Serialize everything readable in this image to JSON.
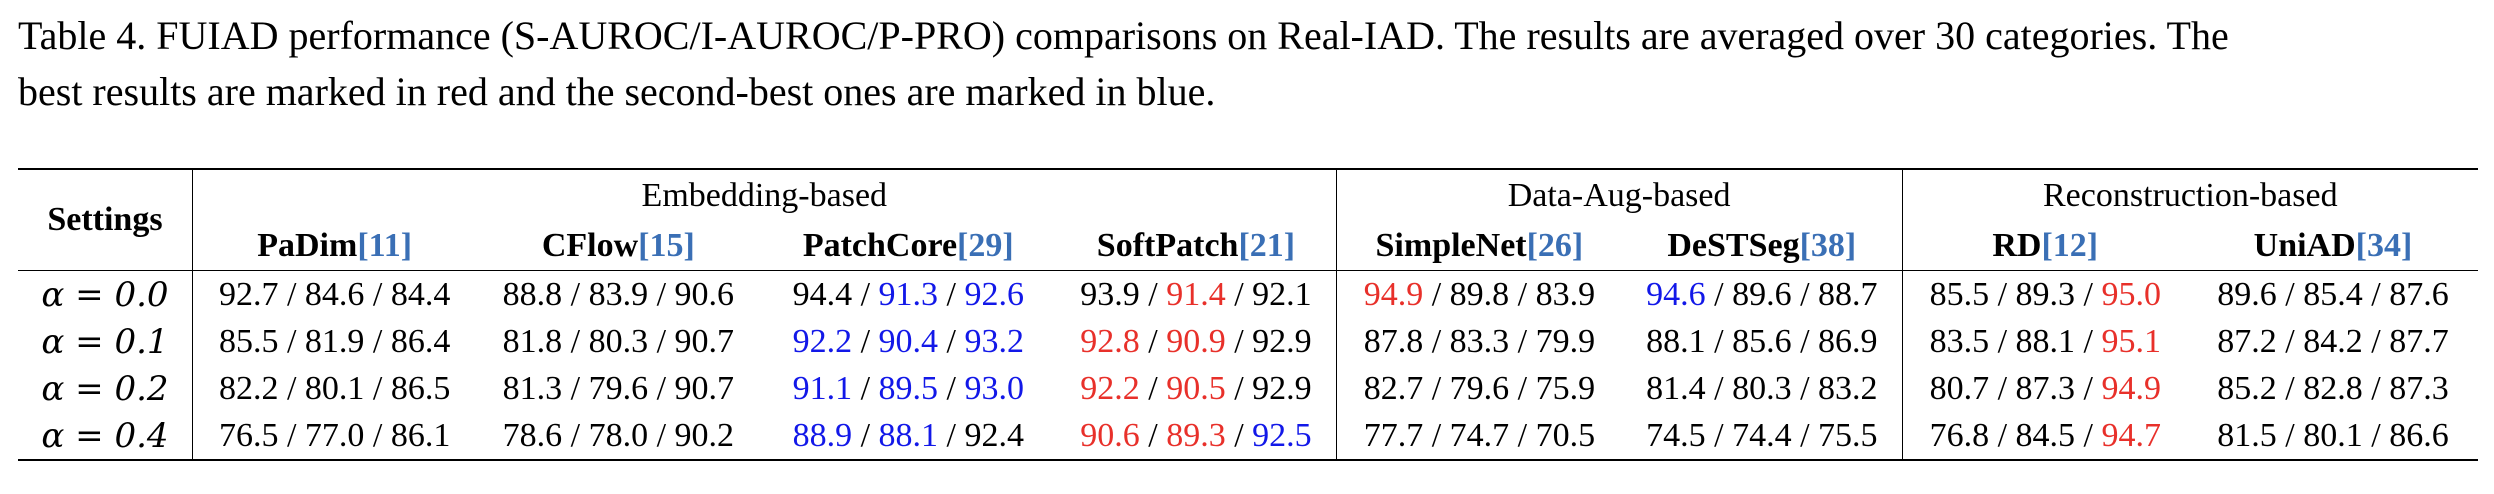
{
  "caption": {
    "line1": "Table 4. FUIAD performance (S-AUROC/I-AUROC/P-PRO) comparisons on Real-IAD. The results are averaged over 30 categories. The",
    "line2": "best results are marked in red and the second-best ones are marked in blue."
  },
  "table": {
    "settings_label": "Settings",
    "groups": [
      "Embedding-based",
      "Data-Aug-based",
      "Reconstruction-based"
    ],
    "methods": [
      {
        "name": "PaDim",
        "ref": "[11]"
      },
      {
        "name": "CFlow",
        "ref": "[15]"
      },
      {
        "name": "PatchCore",
        "ref": "[29]"
      },
      {
        "name": "SoftPatch",
        "ref": "[21]"
      },
      {
        "name": "SimpleNet",
        "ref": "[26]"
      },
      {
        "name": "DeSTSeg",
        "ref": "[38]"
      },
      {
        "name": "RD",
        "ref": "[12]"
      },
      {
        "name": "UniAD",
        "ref": "[34]"
      }
    ],
    "separator": " / ",
    "colors": {
      "best": "#e8302a",
      "second": "#1218e8",
      "citation": "#3a6fb5"
    },
    "rows": [
      {
        "setting": "α = 0.0",
        "cells": [
          [
            {
              "v": "92.7"
            },
            {
              "v": "84.6"
            },
            {
              "v": "84.4"
            }
          ],
          [
            {
              "v": "88.8"
            },
            {
              "v": "83.9"
            },
            {
              "v": "90.6"
            }
          ],
          [
            {
              "v": "94.4"
            },
            {
              "v": "91.3",
              "c": "blue"
            },
            {
              "v": "92.6",
              "c": "blue"
            }
          ],
          [
            {
              "v": "93.9"
            },
            {
              "v": "91.4",
              "c": "red"
            },
            {
              "v": "92.1"
            }
          ],
          [
            {
              "v": "94.9",
              "c": "red"
            },
            {
              "v": "89.8"
            },
            {
              "v": "83.9"
            }
          ],
          [
            {
              "v": "94.6",
              "c": "blue"
            },
            {
              "v": "89.6"
            },
            {
              "v": "88.7"
            }
          ],
          [
            {
              "v": "85.5"
            },
            {
              "v": "89.3"
            },
            {
              "v": "95.0",
              "c": "red"
            }
          ],
          [
            {
              "v": "89.6"
            },
            {
              "v": "85.4"
            },
            {
              "v": "87.6"
            }
          ]
        ]
      },
      {
        "setting": "α = 0.1",
        "cells": [
          [
            {
              "v": "85.5"
            },
            {
              "v": "81.9"
            },
            {
              "v": "86.4"
            }
          ],
          [
            {
              "v": "81.8"
            },
            {
              "v": "80.3"
            },
            {
              "v": "90.7"
            }
          ],
          [
            {
              "v": "92.2",
              "c": "blue"
            },
            {
              "v": "90.4",
              "c": "blue"
            },
            {
              "v": "93.2",
              "c": "blue"
            }
          ],
          [
            {
              "v": "92.8",
              "c": "red"
            },
            {
              "v": "90.9",
              "c": "red"
            },
            {
              "v": "92.9"
            }
          ],
          [
            {
              "v": "87.8"
            },
            {
              "v": "83.3"
            },
            {
              "v": "79.9"
            }
          ],
          [
            {
              "v": "88.1"
            },
            {
              "v": "85.6"
            },
            {
              "v": "86.9"
            }
          ],
          [
            {
              "v": "83.5"
            },
            {
              "v": "88.1"
            },
            {
              "v": "95.1",
              "c": "red"
            }
          ],
          [
            {
              "v": "87.2"
            },
            {
              "v": "84.2"
            },
            {
              "v": "87.7"
            }
          ]
        ]
      },
      {
        "setting": "α = 0.2",
        "cells": [
          [
            {
              "v": "82.2"
            },
            {
              "v": "80.1"
            },
            {
              "v": "86.5"
            }
          ],
          [
            {
              "v": "81.3"
            },
            {
              "v": "79.6"
            },
            {
              "v": "90.7"
            }
          ],
          [
            {
              "v": "91.1",
              "c": "blue"
            },
            {
              "v": "89.5",
              "c": "blue"
            },
            {
              "v": "93.0",
              "c": "blue"
            }
          ],
          [
            {
              "v": "92.2",
              "c": "red"
            },
            {
              "v": "90.5",
              "c": "red"
            },
            {
              "v": "92.9"
            }
          ],
          [
            {
              "v": "82.7"
            },
            {
              "v": "79.6"
            },
            {
              "v": "75.9"
            }
          ],
          [
            {
              "v": "81.4"
            },
            {
              "v": "80.3"
            },
            {
              "v": "83.2"
            }
          ],
          [
            {
              "v": "80.7"
            },
            {
              "v": "87.3"
            },
            {
              "v": "94.9",
              "c": "red"
            }
          ],
          [
            {
              "v": "85.2"
            },
            {
              "v": "82.8"
            },
            {
              "v": "87.3"
            }
          ]
        ]
      },
      {
        "setting": "α = 0.4",
        "cells": [
          [
            {
              "v": "76.5"
            },
            {
              "v": "77.0"
            },
            {
              "v": "86.1"
            }
          ],
          [
            {
              "v": "78.6"
            },
            {
              "v": "78.0"
            },
            {
              "v": "90.2"
            }
          ],
          [
            {
              "v": "88.9",
              "c": "blue"
            },
            {
              "v": "88.1",
              "c": "blue"
            },
            {
              "v": "92.4"
            }
          ],
          [
            {
              "v": "90.6",
              "c": "red"
            },
            {
              "v": "89.3",
              "c": "red"
            },
            {
              "v": "92.5",
              "c": "blue"
            }
          ],
          [
            {
              "v": "77.7"
            },
            {
              "v": "74.7"
            },
            {
              "v": "70.5"
            }
          ],
          [
            {
              "v": "74.5"
            },
            {
              "v": "74.4"
            },
            {
              "v": "75.5"
            }
          ],
          [
            {
              "v": "76.8"
            },
            {
              "v": "84.5"
            },
            {
              "v": "94.7",
              "c": "red"
            }
          ],
          [
            {
              "v": "81.5"
            },
            {
              "v": "80.1"
            },
            {
              "v": "86.6"
            }
          ]
        ]
      }
    ]
  }
}
